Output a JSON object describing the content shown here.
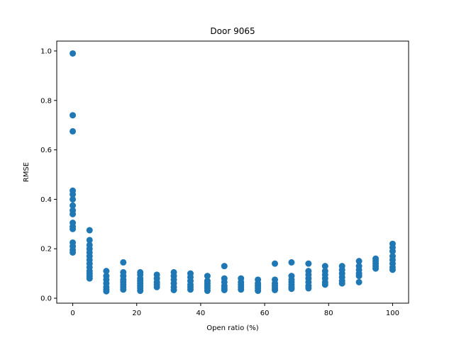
{
  "chart_data": {
    "type": "scatter",
    "title": "Door 9065",
    "xlabel": "Open ratio (%)",
    "ylabel": "RMSE",
    "xlim": [
      -5,
      105
    ],
    "ylim": [
      -0.02,
      1.04
    ],
    "xticks": [
      0,
      20,
      40,
      60,
      80,
      100
    ],
    "xtick_labels": [
      "0",
      "20",
      "40",
      "60",
      "80",
      "100"
    ],
    "yticks": [
      0.0,
      0.2,
      0.4,
      0.6,
      0.8,
      1.0
    ],
    "ytick_labels": [
      "0.0",
      "0.2",
      "0.4",
      "0.6",
      "0.8",
      "1.0"
    ],
    "grid": false,
    "marker_color": "#1f77b4",
    "points": [
      [
        0,
        0.99
      ],
      [
        0,
        0.74
      ],
      [
        0,
        0.675
      ],
      [
        0,
        0.435
      ],
      [
        0,
        0.42
      ],
      [
        0,
        0.4
      ],
      [
        0,
        0.375
      ],
      [
        0,
        0.355
      ],
      [
        0,
        0.34
      ],
      [
        0,
        0.305
      ],
      [
        0,
        0.29
      ],
      [
        0,
        0.28
      ],
      [
        0,
        0.225
      ],
      [
        0,
        0.21
      ],
      [
        0,
        0.195
      ],
      [
        0,
        0.185
      ],
      [
        5.26,
        0.275
      ],
      [
        5.26,
        0.235
      ],
      [
        5.26,
        0.215
      ],
      [
        5.26,
        0.2
      ],
      [
        5.26,
        0.185
      ],
      [
        5.26,
        0.17
      ],
      [
        5.26,
        0.155
      ],
      [
        5.26,
        0.14
      ],
      [
        5.26,
        0.125
      ],
      [
        5.26,
        0.11
      ],
      [
        5.26,
        0.1
      ],
      [
        5.26,
        0.09
      ],
      [
        5.26,
        0.08
      ],
      [
        10.5,
        0.11
      ],
      [
        10.5,
        0.09
      ],
      [
        10.5,
        0.075
      ],
      [
        10.5,
        0.06
      ],
      [
        10.5,
        0.045
      ],
      [
        10.5,
        0.035
      ],
      [
        10.5,
        0.028
      ],
      [
        15.8,
        0.145
      ],
      [
        15.8,
        0.105
      ],
      [
        15.8,
        0.09
      ],
      [
        15.8,
        0.075
      ],
      [
        15.8,
        0.065
      ],
      [
        15.8,
        0.055
      ],
      [
        15.8,
        0.045
      ],
      [
        15.8,
        0.035
      ],
      [
        21.1,
        0.105
      ],
      [
        21.1,
        0.095
      ],
      [
        21.1,
        0.08
      ],
      [
        21.1,
        0.07
      ],
      [
        21.1,
        0.06
      ],
      [
        21.1,
        0.05
      ],
      [
        21.1,
        0.04
      ],
      [
        21.1,
        0.03
      ],
      [
        26.3,
        0.095
      ],
      [
        26.3,
        0.08
      ],
      [
        26.3,
        0.065
      ],
      [
        26.3,
        0.055
      ],
      [
        26.3,
        0.045
      ],
      [
        31.6,
        0.105
      ],
      [
        31.6,
        0.09
      ],
      [
        31.6,
        0.075
      ],
      [
        31.6,
        0.06
      ],
      [
        31.6,
        0.045
      ],
      [
        31.6,
        0.033
      ],
      [
        36.8,
        0.1
      ],
      [
        36.8,
        0.085
      ],
      [
        36.8,
        0.07
      ],
      [
        36.8,
        0.055
      ],
      [
        36.8,
        0.045
      ],
      [
        36.8,
        0.035
      ],
      [
        42.1,
        0.09
      ],
      [
        42.1,
        0.07
      ],
      [
        42.1,
        0.06
      ],
      [
        42.1,
        0.05
      ],
      [
        42.1,
        0.04
      ],
      [
        42.1,
        0.03
      ],
      [
        47.4,
        0.13
      ],
      [
        47.4,
        0.08
      ],
      [
        47.4,
        0.065
      ],
      [
        47.4,
        0.05
      ],
      [
        47.4,
        0.04
      ],
      [
        47.4,
        0.033
      ],
      [
        52.6,
        0.08
      ],
      [
        52.6,
        0.065
      ],
      [
        52.6,
        0.055
      ],
      [
        52.6,
        0.045
      ],
      [
        52.6,
        0.035
      ],
      [
        57.9,
        0.075
      ],
      [
        57.9,
        0.06
      ],
      [
        57.9,
        0.05
      ],
      [
        57.9,
        0.04
      ],
      [
        57.9,
        0.03
      ],
      [
        63.2,
        0.14
      ],
      [
        63.2,
        0.075
      ],
      [
        63.2,
        0.06
      ],
      [
        63.2,
        0.05
      ],
      [
        63.2,
        0.04
      ],
      [
        63.2,
        0.033
      ],
      [
        68.4,
        0.145
      ],
      [
        68.4,
        0.09
      ],
      [
        68.4,
        0.075
      ],
      [
        68.4,
        0.065
      ],
      [
        68.4,
        0.055
      ],
      [
        68.4,
        0.045
      ],
      [
        68.4,
        0.038
      ],
      [
        73.7,
        0.14
      ],
      [
        73.7,
        0.11
      ],
      [
        73.7,
        0.095
      ],
      [
        73.7,
        0.08
      ],
      [
        73.7,
        0.065
      ],
      [
        73.7,
        0.05
      ],
      [
        73.7,
        0.04
      ],
      [
        78.9,
        0.13
      ],
      [
        78.9,
        0.11
      ],
      [
        78.9,
        0.095
      ],
      [
        78.9,
        0.08
      ],
      [
        78.9,
        0.065
      ],
      [
        78.9,
        0.055
      ],
      [
        84.2,
        0.13
      ],
      [
        84.2,
        0.115
      ],
      [
        84.2,
        0.1
      ],
      [
        84.2,
        0.085
      ],
      [
        84.2,
        0.07
      ],
      [
        84.2,
        0.06
      ],
      [
        89.5,
        0.15
      ],
      [
        89.5,
        0.13
      ],
      [
        89.5,
        0.115
      ],
      [
        89.5,
        0.1
      ],
      [
        89.5,
        0.09
      ],
      [
        89.5,
        0.065
      ],
      [
        94.7,
        0.16
      ],
      [
        94.7,
        0.15
      ],
      [
        94.7,
        0.14
      ],
      [
        94.7,
        0.13
      ],
      [
        94.7,
        0.12
      ],
      [
        100,
        0.22
      ],
      [
        100,
        0.205
      ],
      [
        100,
        0.19
      ],
      [
        100,
        0.17
      ],
      [
        100,
        0.155
      ],
      [
        100,
        0.14
      ],
      [
        100,
        0.125
      ],
      [
        100,
        0.115
      ]
    ]
  }
}
